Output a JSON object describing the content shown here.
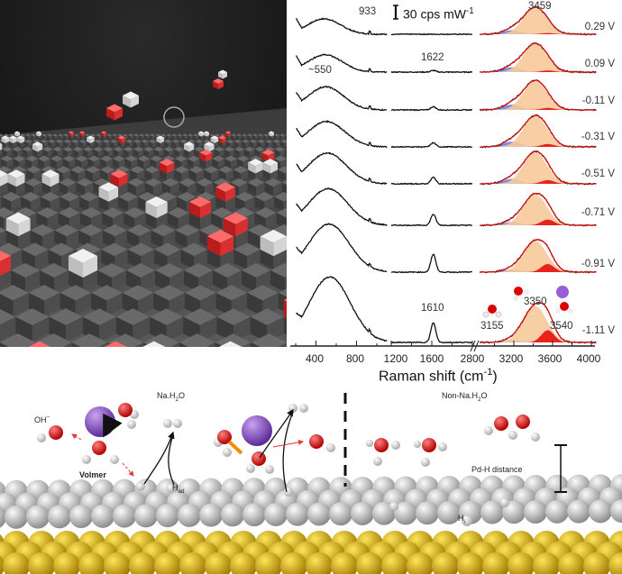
{
  "colors": {
    "trace": "#111111",
    "fit": "#e01010",
    "blue_component": "#6f7fe8",
    "orange_component": "#f7c99a",
    "red_component": "#e81010",
    "oxygen": "#e00000",
    "hydrogen": "#eeeeee",
    "sodium": "#8a4fc9",
    "pd": "#c8c8c8",
    "gold": "#d6a800"
  },
  "chart_data": {
    "type": "line",
    "xlabel": "Raman shift (cm",
    "xlabel_sup": "-1",
    "xlabel_end": ")",
    "scale_bar": "30 cps mW",
    "scale_bar_sup": "-1",
    "scale_bar_cps": 30,
    "x_ticks": [
      "400",
      "800",
      "1200",
      "1600",
      "2800",
      "3200",
      "3600",
      "4000"
    ],
    "x_ranges": [
      [
        200,
        1100
      ],
      [
        1200,
        2000
      ],
      [
        2850,
        4050
      ]
    ],
    "peak_labels": {
      "p933": "933",
      "p550": "~550",
      "p1622": "1622",
      "p1610": "1610",
      "p3459": "3459",
      "p3155": "3155",
      "p3350": "3350",
      "p3540": "3540"
    },
    "series": [
      {
        "name": "0.29 V",
        "lowfreq_peak": 40,
        "bend_1620": 0,
        "oh_blue": 10,
        "oh_orange": 66,
        "oh_red": 3
      },
      {
        "name": "0.09 V",
        "lowfreq_peak": 45,
        "bend_1620": 4,
        "oh_blue": 12,
        "oh_orange": 70,
        "oh_red": 4
      },
      {
        "name": "-0.11 V",
        "lowfreq_peak": 60,
        "bend_1620": 8,
        "oh_blue": 13,
        "oh_orange": 72,
        "oh_red": 5
      },
      {
        "name": "-0.31 V",
        "lowfreq_peak": 66,
        "bend_1620": 10,
        "oh_blue": 13,
        "oh_orange": 76,
        "oh_red": 7
      },
      {
        "name": "-0.51 V",
        "lowfreq_peak": 80,
        "bend_1620": 16,
        "oh_blue": 12,
        "oh_orange": 78,
        "oh_red": 9
      },
      {
        "name": "-0.71 V",
        "lowfreq_peak": 95,
        "bend_1620": 27,
        "oh_blue": 8,
        "oh_orange": 76,
        "oh_red": 14
      },
      {
        "name": "-0.91 V",
        "lowfreq_peak": 125,
        "bend_1620": 44,
        "oh_blue": 6,
        "oh_orange": 76,
        "oh_red": 20
      },
      {
        "name": "-1.11 V",
        "lowfreq_peak": 170,
        "bend_1620": 48,
        "oh_blue": 5,
        "oh_orange": 90,
        "oh_red": 30
      }
    ]
  },
  "diagram": {
    "oh_minus": "OH",
    "oh_minus_sup": "−",
    "volmer": "Volmer",
    "na_h2o": "Na.H",
    "na_h2o_sub": "2",
    "na_h2o_end": "O",
    "h_ad": "H",
    "h_ad_sub": "ad",
    "non_na_h2o": "Non-Na.H",
    "non_na_h2o_sub": "2",
    "non_na_h2o_end": "O",
    "pd_h_distance": "Pd-H distance",
    "h_i": "H",
    "h_i_sub": "i"
  }
}
